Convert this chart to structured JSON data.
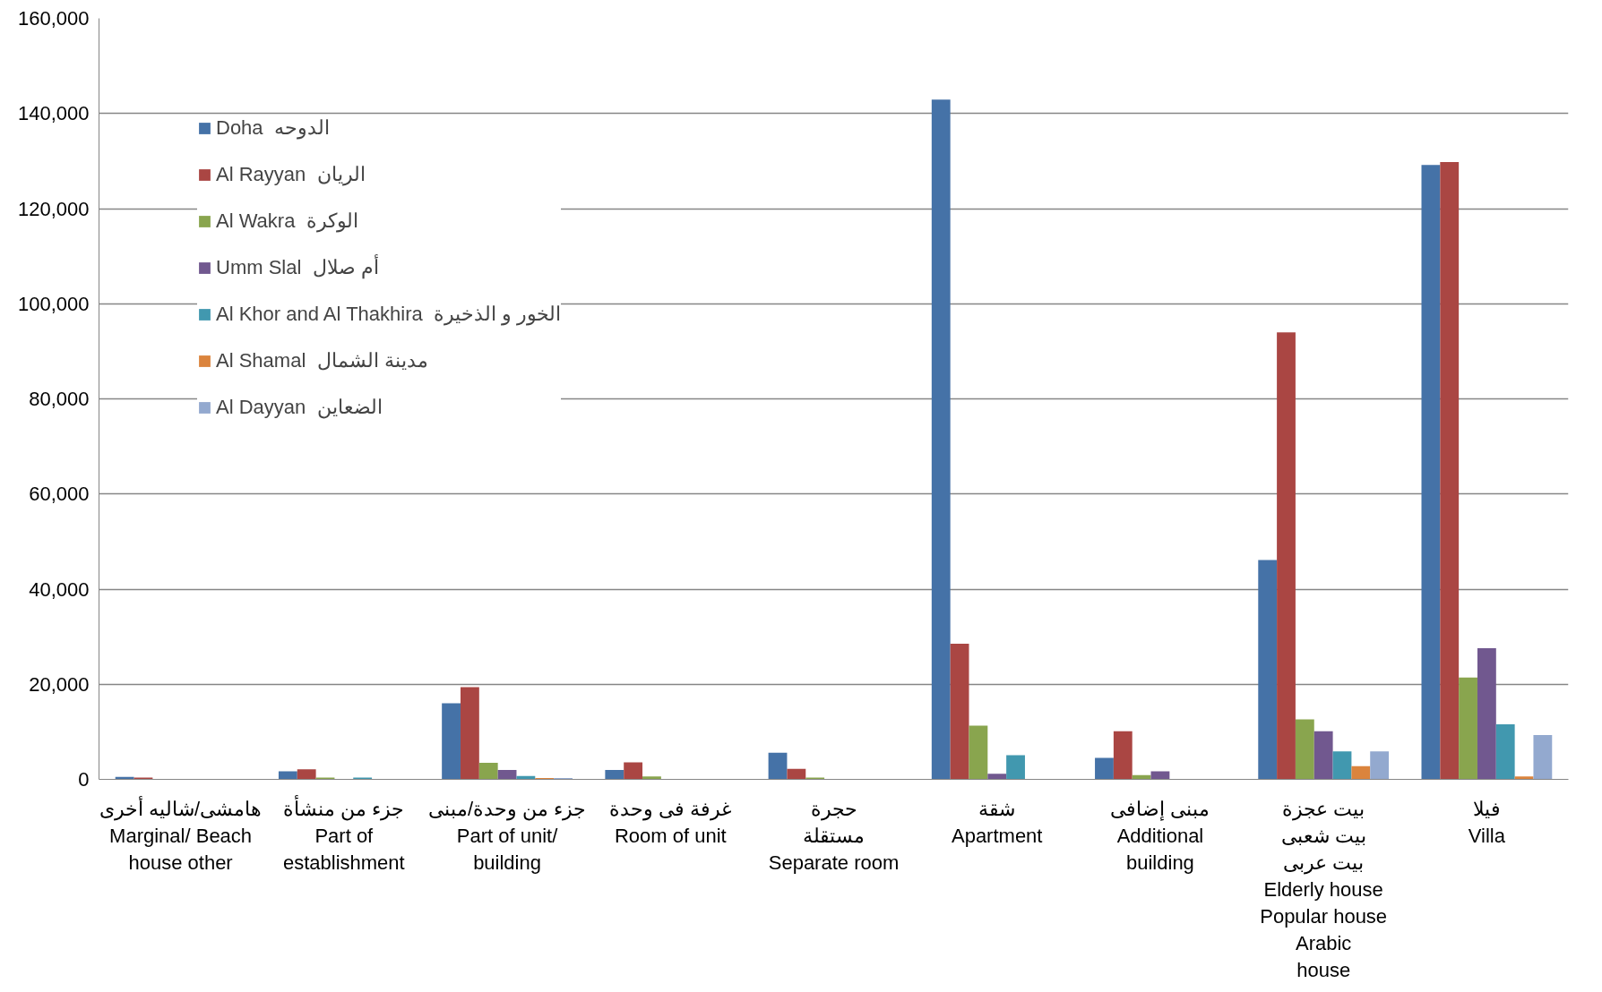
{
  "chart_data": {
    "type": "bar",
    "categories": [
      "هامشى/شاليه أخرى\nMarginal/ Beach\nhouse other",
      "جزء من منشأة\nPart of\nestablishment",
      "جزء من وحدة/مبنى\nPart of unit/\nbuilding",
      "غرفة فى وحدة\nRoom of unit",
      "حجرة\nمستقلة\nSeparate room",
      "شقة\nApartment",
      "مبنى إضافى\nAdditional\nbuilding",
      "بيت عجزة\nبيت شعبى\nبيت عربى\nElderly house\nPopular house\nArabic\nhouse",
      "فيلا\nVilla"
    ],
    "series": [
      {
        "name": "Doha  الدوحه",
        "color": "#4572a7",
        "values": [
          500,
          1700,
          16000,
          2000,
          5600,
          142900,
          4500,
          46100,
          129200
        ]
      },
      {
        "name": "Al Rayyan  الريان",
        "color": "#aa4643",
        "values": [
          400,
          2100,
          19400,
          3600,
          2200,
          28500,
          10100,
          94000,
          129800
        ]
      },
      {
        "name": "Al Wakra  الوكرة",
        "color": "#89a54e",
        "values": [
          null,
          400,
          3500,
          600,
          400,
          11300,
          900,
          12600,
          21400
        ]
      },
      {
        "name": "Umm Slal  أم صلال",
        "color": "#71588f",
        "values": [
          null,
          null,
          2000,
          null,
          null,
          1200,
          1700,
          10100,
          27600
        ]
      },
      {
        "name": "Al Khor and Al Thakhira  الخور و الذخيرة",
        "color": "#4198af",
        "values": [
          null,
          400,
          700,
          100,
          null,
          5100,
          null,
          5900,
          11600
        ]
      },
      {
        "name": "Al Shamal  مدينة الشمال",
        "color": "#db843d",
        "values": [
          null,
          100,
          300,
          null,
          null,
          null,
          null,
          2800,
          600
        ]
      },
      {
        "name": "Al Dayyan  الضعاين",
        "color": "#93a9cf",
        "values": [
          null,
          null,
          300,
          null,
          null,
          null,
          null,
          5900,
          9300
        ]
      }
    ],
    "ylim": [
      0,
      160000
    ],
    "yticks": [
      {
        "value": 0,
        "label": "0"
      },
      {
        "value": 20000,
        "label": "20,000"
      },
      {
        "value": 40000,
        "label": "40,000"
      },
      {
        "value": 60000,
        "label": "60,000"
      },
      {
        "value": 80000,
        "label": "80,000"
      },
      {
        "value": 100000,
        "label": "100,000"
      },
      {
        "value": 120000,
        "label": "120,000"
      },
      {
        "value": 140000,
        "label": "140,000"
      },
      {
        "value": 160000,
        "label": "160,000"
      }
    ],
    "grid": "y",
    "legend": "top left"
  }
}
